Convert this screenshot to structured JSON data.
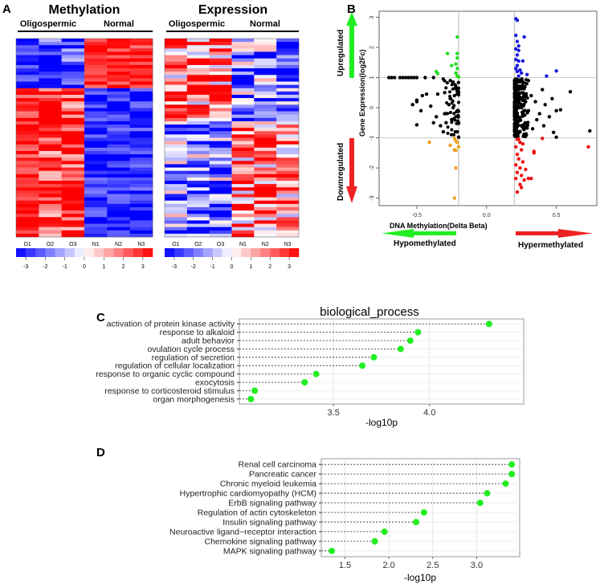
{
  "panels": {
    "a": "A",
    "b": "B",
    "c": "C",
    "d": "D"
  },
  "heatmaps": [
    {
      "title": "Methylation",
      "groups": [
        "Oligospermic",
        "Normal"
      ],
      "columns": [
        "O1",
        "O2",
        "O3",
        "N1",
        "N2",
        "N3"
      ]
    },
    {
      "title": "Expression",
      "groups": [
        "Oligospermic",
        "Normal"
      ],
      "columns": [
        "O1",
        "O2",
        "O3",
        "N1",
        "N2",
        "N3"
      ]
    }
  ],
  "colorbar": {
    "ticks": [
      "-3",
      "-2",
      "-1",
      "0",
      "1",
      "2",
      "3"
    ],
    "low": "#0000ff",
    "mid": "#ffffff",
    "high": "#ff0000"
  },
  "chart_data": [
    {
      "type": "scatter",
      "panel": "B",
      "xlabel": "DNA Methylation(Delta Beta)",
      "ylabel": "Gene Expression(log2Fc)",
      "xlim": [
        -0.77,
        0.79
      ],
      "ylim": [
        -3.25,
        3.2
      ],
      "xticks": [
        "-0.5",
        "0.0",
        "0.5"
      ],
      "yticks": [
        "3",
        "2",
        "1",
        "0",
        "-1",
        "-2",
        "-3"
      ],
      "thresholds": {
        "x": [
          -0.2,
          0.2
        ],
        "y": [
          -1,
          1
        ]
      },
      "annotations": {
        "up": "Upregulated",
        "down": "Downregulated",
        "hypo": "Hypomethylated",
        "hyper": "Hypermethylated"
      },
      "series": [
        {
          "name": "hypo-up",
          "color": "#22dd22",
          "points": [
            [
              -0.21,
              2.35
            ],
            [
              -0.21,
              1.8
            ],
            [
              -0.28,
              1.8
            ],
            [
              -0.21,
              1.65
            ],
            [
              -0.25,
              1.4
            ],
            [
              -0.22,
              1.45
            ],
            [
              -0.21,
              1.3
            ],
            [
              -0.22,
              1.15
            ],
            [
              -0.36,
              1.2
            ],
            [
              -0.35,
              1.13
            ],
            [
              -0.21,
              1.05
            ],
            [
              -0.2,
              1.02
            ]
          ]
        },
        {
          "name": "hyper-up",
          "color": "#1a1add",
          "points": [
            [
              0.21,
              2.95
            ],
            [
              0.22,
              2.9
            ],
            [
              0.21,
              2.4
            ],
            [
              0.27,
              2.35
            ],
            [
              0.22,
              2.2
            ],
            [
              0.23,
              2.05
            ],
            [
              0.21,
              1.95
            ],
            [
              0.23,
              1.9
            ],
            [
              0.22,
              1.75
            ],
            [
              0.21,
              1.6
            ],
            [
              0.23,
              1.55
            ],
            [
              0.26,
              1.55
            ],
            [
              0.22,
              1.4
            ],
            [
              0.21,
              1.3
            ],
            [
              0.24,
              1.25
            ],
            [
              0.22,
              1.2
            ],
            [
              0.25,
              1.15
            ],
            [
              0.29,
              1.1
            ],
            [
              0.5,
              1.22
            ],
            [
              0.43,
              1.05
            ],
            [
              0.23,
              1.05
            ]
          ]
        },
        {
          "name": "hypo-down",
          "color": "#f0a020",
          "points": [
            [
              -0.23,
              -1.02
            ],
            [
              -0.22,
              -1.1
            ],
            [
              -0.41,
              -1.15
            ],
            [
              -0.26,
              -1.25
            ],
            [
              -0.2,
              -1.3
            ],
            [
              -0.23,
              -1.4
            ],
            [
              -0.22,
              -1.42
            ],
            [
              -0.22,
              -2.0
            ],
            [
              -0.23,
              -3.0
            ],
            [
              -0.21,
              -1.15
            ]
          ]
        },
        {
          "name": "hyper-down",
          "color": "#ee1111",
          "points": [
            [
              0.22,
              -1.05
            ],
            [
              0.24,
              -1.15
            ],
            [
              0.21,
              -1.3
            ],
            [
              0.25,
              -1.4
            ],
            [
              0.22,
              -1.55
            ],
            [
              0.23,
              -1.7
            ],
            [
              0.26,
              -1.8
            ],
            [
              0.21,
              -1.9
            ],
            [
              0.24,
              -2.0
            ],
            [
              0.22,
              -2.15
            ],
            [
              0.25,
              -2.25
            ],
            [
              0.21,
              -2.35
            ],
            [
              0.27,
              -2.4
            ],
            [
              0.3,
              -2.35
            ],
            [
              0.32,
              -2.35
            ],
            [
              0.24,
              -2.55
            ],
            [
              0.25,
              -2.65
            ],
            [
              0.22,
              -2.8
            ],
            [
              0.28,
              -2.05
            ],
            [
              0.34,
              -1.45
            ],
            [
              0.34,
              -1.5
            ],
            [
              0.4,
              -1.02
            ],
            [
              0.73,
              -1.3
            ],
            [
              0.23,
              -1.05
            ],
            [
              0.26,
              -1.2
            ]
          ]
        },
        {
          "name": "not-significant",
          "color": "#000000",
          "points": [
            [
              -0.7,
              1.0
            ],
            [
              -0.68,
              1.0
            ],
            [
              -0.66,
              1.0
            ],
            [
              -0.62,
              1.0
            ],
            [
              -0.6,
              1.0
            ],
            [
              -0.58,
              1.0
            ],
            [
              -0.56,
              1.0
            ],
            [
              -0.54,
              1.0
            ],
            [
              -0.52,
              1.0
            ],
            [
              -0.5,
              1.0
            ],
            [
              -0.44,
              1.0
            ],
            [
              -0.38,
              1.0
            ],
            [
              -0.31,
              0.95
            ],
            [
              -0.26,
              0.9
            ],
            [
              -0.24,
              0.85
            ],
            [
              -0.22,
              0.7
            ],
            [
              -0.21,
              0.6
            ],
            [
              -0.2,
              0.5
            ],
            [
              -0.23,
              0.4
            ],
            [
              -0.26,
              0.3
            ],
            [
              -0.3,
              0.5
            ],
            [
              -0.35,
              0.45
            ],
            [
              -0.43,
              0.45
            ],
            [
              -0.46,
              0.4
            ],
            [
              -0.5,
              0.25
            ],
            [
              -0.5,
              0.2
            ],
            [
              -0.53,
              0.1
            ],
            [
              -0.47,
              -0.1
            ],
            [
              -0.4,
              0.05
            ],
            [
              -0.36,
              -0.3
            ],
            [
              -0.3,
              -0.2
            ],
            [
              -0.27,
              0.1
            ],
            [
              -0.24,
              0.0
            ],
            [
              -0.21,
              -0.1
            ],
            [
              -0.22,
              -0.3
            ],
            [
              -0.2,
              -0.5
            ],
            [
              -0.25,
              -0.4
            ],
            [
              -0.29,
              -0.5
            ],
            [
              -0.33,
              -0.6
            ],
            [
              -0.38,
              -0.5
            ],
            [
              -0.5,
              -0.57
            ],
            [
              -0.31,
              -0.8
            ],
            [
              -0.21,
              -0.8
            ],
            [
              -0.2,
              -0.98
            ],
            [
              0.21,
              0.9
            ],
            [
              0.22,
              0.6
            ],
            [
              0.21,
              0.3
            ],
            [
              0.23,
              0.0
            ],
            [
              0.22,
              -0.3
            ],
            [
              0.21,
              -0.6
            ],
            [
              0.24,
              -0.8
            ],
            [
              0.26,
              0.5
            ],
            [
              0.28,
              0.2
            ],
            [
              0.3,
              -0.1
            ],
            [
              0.32,
              0.4
            ],
            [
              0.35,
              0.2
            ],
            [
              0.38,
              -0.2
            ],
            [
              0.4,
              0.6
            ],
            [
              0.42,
              0.1
            ],
            [
              0.45,
              -0.3
            ],
            [
              0.47,
              0.3
            ],
            [
              0.5,
              -0.1
            ],
            [
              0.53,
              -0.07
            ],
            [
              0.6,
              0.53
            ],
            [
              0.48,
              -0.82
            ],
            [
              0.5,
              -0.98
            ],
            [
              0.74,
              -0.77
            ],
            [
              0.28,
              -0.5
            ],
            [
              0.33,
              -0.7
            ],
            [
              0.36,
              -0.4
            ],
            [
              0.41,
              -0.6
            ],
            [
              0.26,
              0.85
            ],
            [
              0.3,
              0.9
            ],
            [
              0.27,
              -0.95
            ]
          ]
        }
      ]
    },
    {
      "type": "dot",
      "panel": "C",
      "title": "biological_process",
      "xlabel": "-log10p",
      "xlim": [
        3.01,
        4.49
      ],
      "xticks": [
        3.5,
        4.0
      ],
      "categories": [
        "activation of protein kinase activity",
        "response to alkaloid",
        "adult behavior",
        "ovulation cycle process",
        "regulation of secretion",
        "regulation of cellular localization",
        "response to organic cyclic compound",
        "exocytosis",
        "response to corticosteroid stimulus",
        "organ morphogenesis"
      ],
      "values": [
        4.31,
        3.94,
        3.9,
        3.85,
        3.71,
        3.65,
        3.41,
        3.35,
        3.09,
        3.07
      ]
    },
    {
      "type": "dot",
      "panel": "D",
      "title": "",
      "xlabel": "-log10p",
      "xlim": [
        1.23,
        3.49
      ],
      "xticks": [
        1.5,
        2.0,
        2.5,
        3.0
      ],
      "categories": [
        "Renal cell carcinoma",
        "Pancreatic cancer",
        "Chronic myeloid leukemia",
        "Hypertrophic cardiomyopathy (HCM)",
        "ErbB signaling pathway",
        "Regulation of actin cytoskeleton",
        "Insulin signaling pathway",
        "Neuroactive ligand−receptor interaction",
        "Chemokine signaling pathway",
        "MAPK signaling pathway"
      ],
      "values": [
        3.4,
        3.4,
        3.33,
        3.12,
        3.04,
        2.4,
        2.31,
        1.95,
        1.84,
        1.35
      ]
    }
  ]
}
